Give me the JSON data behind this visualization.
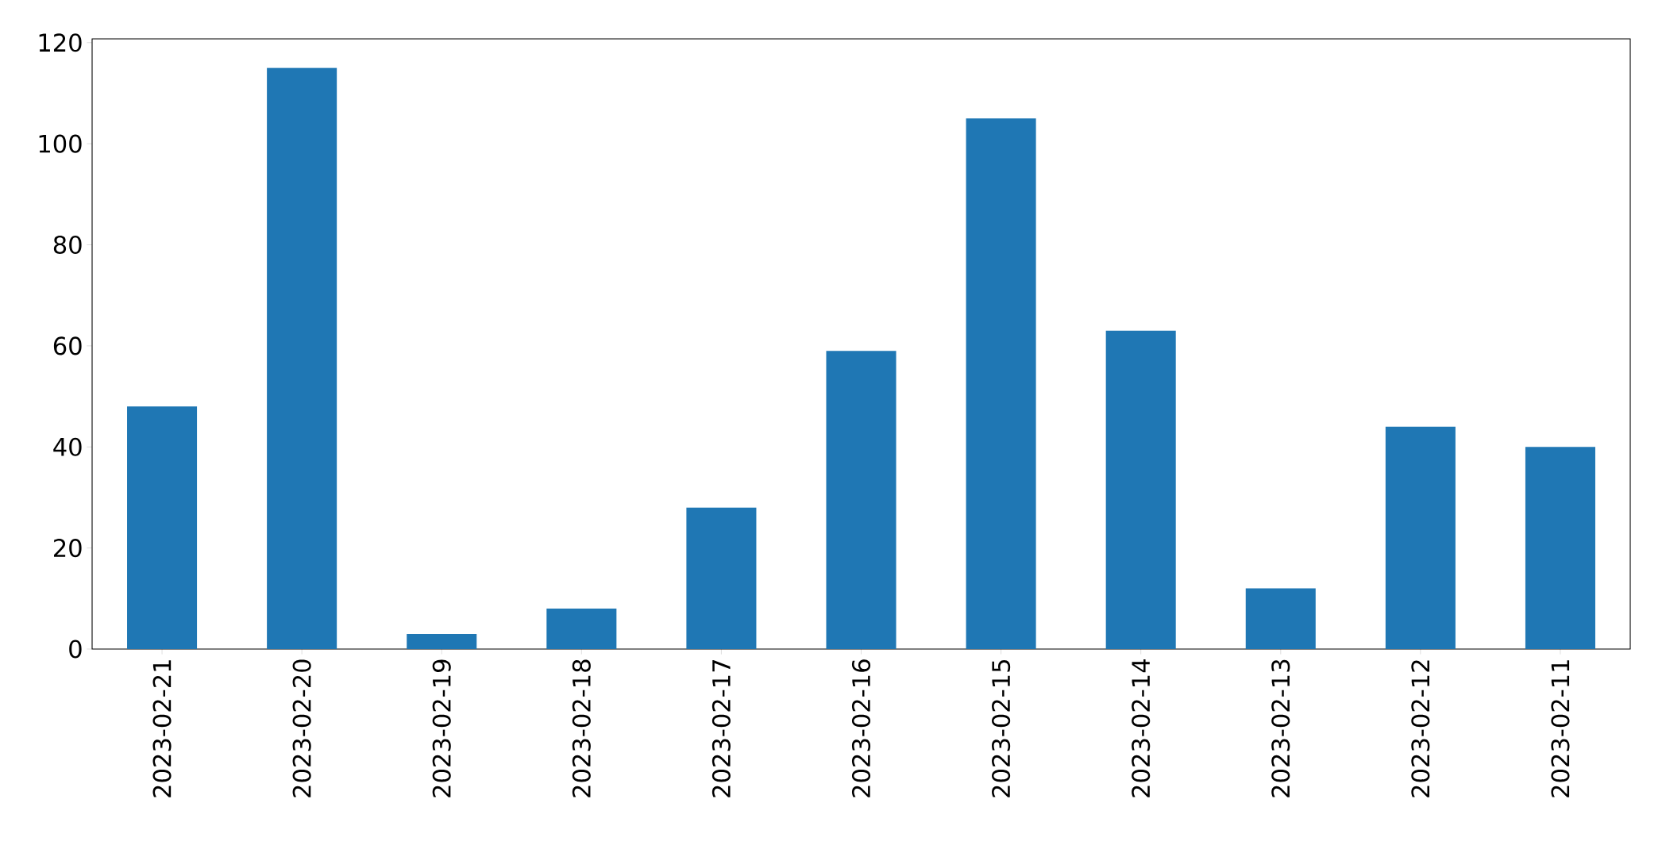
{
  "chart_data": {
    "type": "bar",
    "categories": [
      "2023-02-21",
      "2023-02-20",
      "2023-02-19",
      "2023-02-18",
      "2023-02-17",
      "2023-02-16",
      "2023-02-15",
      "2023-02-14",
      "2023-02-13",
      "2023-02-12",
      "2023-02-11"
    ],
    "values": [
      48,
      115,
      3,
      8,
      28,
      59,
      105,
      63,
      12,
      44,
      40
    ],
    "color": "#1f77b4",
    "ylim": [
      0,
      120.75
    ],
    "yticks": [
      0,
      20,
      40,
      60,
      80,
      100,
      120
    ]
  }
}
